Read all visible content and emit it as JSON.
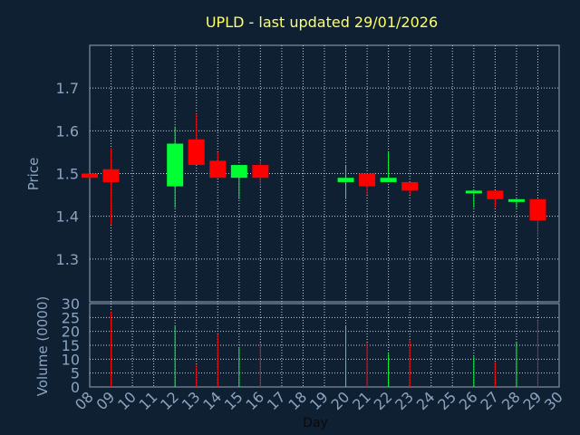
{
  "chart_data": {
    "type": "candlestick",
    "title": "UPLD - last updated 29/01/2026",
    "xlabel": "Day",
    "price_axis": {
      "label": "Price",
      "ticks": [
        1.3,
        1.4,
        1.5,
        1.6,
        1.7
      ],
      "ylim": [
        1.2,
        1.8
      ]
    },
    "volume_axis": {
      "label": "Volume (0000)",
      "ticks": [
        0,
        5,
        10,
        15,
        20,
        25,
        30
      ],
      "ylim": [
        0,
        30
      ]
    },
    "x_ticks": [
      "08",
      "09",
      "10",
      "11",
      "12",
      "13",
      "14",
      "15",
      "16",
      "17",
      "18",
      "19",
      "20",
      "21",
      "22",
      "23",
      "24",
      "25",
      "26",
      "27",
      "28",
      "29",
      "30"
    ],
    "grid": true,
    "colors": {
      "up": "#00ff33",
      "down": "#ff0000",
      "background": "#0f2033",
      "grid": "#c8d0dc",
      "title": "#ffff66",
      "axis_text": "#8aa3bf"
    },
    "candles": [
      {
        "day": 8,
        "open": 1.5,
        "close": 1.49,
        "high": 1.5,
        "low": 1.49,
        "volume": 0
      },
      {
        "day": 9,
        "open": 1.51,
        "close": 1.48,
        "high": 1.56,
        "low": 1.38,
        "volume": 27
      },
      {
        "day": 12,
        "open": 1.47,
        "close": 1.57,
        "high": 1.61,
        "low": 1.42,
        "volume": 22
      },
      {
        "day": 13,
        "open": 1.58,
        "close": 1.52,
        "high": 1.64,
        "low": 1.52,
        "volume": 8
      },
      {
        "day": 14,
        "open": 1.53,
        "close": 1.49,
        "high": 1.55,
        "low": 1.49,
        "volume": 19
      },
      {
        "day": 15,
        "open": 1.49,
        "close": 1.52,
        "high": 1.52,
        "low": 1.44,
        "volume": 14
      },
      {
        "day": 16,
        "open": 1.52,
        "close": 1.49,
        "high": 1.53,
        "low": 1.47,
        "volume": 16
      },
      {
        "day": 20,
        "open": 1.48,
        "close": 1.49,
        "high": 1.52,
        "low": 1.44,
        "volume": 22
      },
      {
        "day": 21,
        "open": 1.5,
        "close": 1.47,
        "high": 1.5,
        "low": 1.45,
        "volume": 16
      },
      {
        "day": 22,
        "open": 1.48,
        "close": 1.49,
        "high": 1.55,
        "low": 1.48,
        "volume": 12
      },
      {
        "day": 23,
        "open": 1.48,
        "close": 1.46,
        "high": 1.48,
        "low": 1.45,
        "volume": 17
      },
      {
        "day": 26,
        "open": 1.46,
        "close": 1.46,
        "high": 1.46,
        "low": 1.42,
        "volume": 11
      },
      {
        "day": 27,
        "open": 1.46,
        "close": 1.44,
        "high": 1.46,
        "low": 1.42,
        "volume": 9
      },
      {
        "day": 28,
        "open": 1.44,
        "close": 1.44,
        "high": 1.44,
        "low": 1.42,
        "volume": 16
      },
      {
        "day": 29,
        "open": 1.44,
        "close": 1.39,
        "high": 1.44,
        "low": 1.35,
        "volume": 24
      }
    ]
  }
}
